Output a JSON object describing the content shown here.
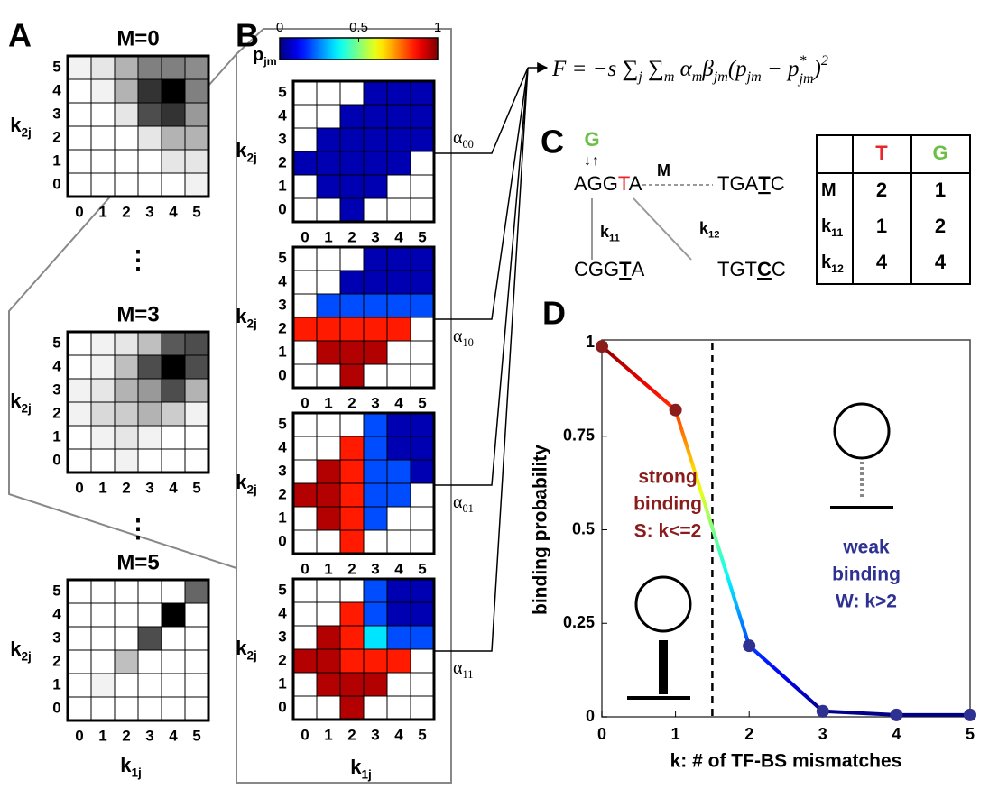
{
  "panel_a": {
    "label": "A",
    "ellipsis": "⋮",
    "ticks": [
      0,
      1,
      2,
      3,
      4,
      5
    ],
    "y_label": {
      "base": "k",
      "sub": "2j"
    },
    "x_label": {
      "base": "k",
      "sub": "1j"
    },
    "grids": [
      {
        "title": "M=0",
        "values": [
          [
            0.05,
            0.1,
            0.3,
            0.5,
            0.5,
            0.45
          ],
          [
            0,
            0.05,
            0.3,
            0.8,
            1,
            0.5
          ],
          [
            0,
            0,
            0.1,
            0.7,
            0.8,
            0.4
          ],
          [
            0,
            0,
            0,
            0.1,
            0.3,
            0.3
          ],
          [
            0,
            0,
            0,
            0,
            0.1,
            0.1
          ],
          [
            0,
            0,
            0,
            0,
            0,
            0.05
          ]
        ]
      },
      {
        "title": "M=3",
        "values": [
          [
            0,
            0.05,
            0.1,
            0.25,
            0.65,
            0.7
          ],
          [
            0,
            0.05,
            0.25,
            0.7,
            1,
            0.7
          ],
          [
            0.05,
            0.1,
            0.3,
            0.4,
            0.7,
            0.3
          ],
          [
            0.05,
            0.15,
            0.2,
            0.3,
            0.2,
            0.05
          ],
          [
            0,
            0.05,
            0.1,
            0.05,
            0,
            0
          ],
          [
            0,
            0,
            0.05,
            0,
            0,
            0
          ]
        ]
      },
      {
        "title": "M=5",
        "values": [
          [
            0,
            0,
            0,
            0,
            0,
            0.6
          ],
          [
            0,
            0,
            0,
            0,
            1,
            0
          ],
          [
            0,
            0,
            0,
            0.7,
            0,
            0
          ],
          [
            0,
            0,
            0.25,
            0,
            0,
            0
          ],
          [
            0,
            0.05,
            0,
            0,
            0,
            0
          ],
          [
            0,
            0,
            0,
            0,
            0,
            0
          ]
        ]
      }
    ]
  },
  "panel_b": {
    "label": "B",
    "ticks": [
      0,
      1,
      2,
      3,
      4,
      5
    ],
    "y_label": {
      "base": "k",
      "sub": "2j"
    },
    "x_label": {
      "base": "k",
      "sub": "1j"
    },
    "colorbar": {
      "label": {
        "base": "p",
        "sub": "jm"
      },
      "lim": [
        0,
        1
      ],
      "ticks": [
        0,
        0.5,
        1
      ]
    },
    "grids": [
      {
        "weight": {
          "base": "α",
          "sub": "00"
        },
        "values": [
          [
            null,
            null,
            null,
            0.05,
            0.05,
            0.05
          ],
          [
            null,
            null,
            0.05,
            0.05,
            0.05,
            0.05
          ],
          [
            null,
            0.05,
            0.05,
            0.05,
            0.05,
            0.05
          ],
          [
            0.05,
            0.05,
            0.05,
            0.05,
            0.05,
            null
          ],
          [
            null,
            0.05,
            0.05,
            0.05,
            null,
            null
          ],
          [
            null,
            null,
            0.05,
            null,
            null,
            null
          ]
        ]
      },
      {
        "weight": {
          "base": "α",
          "sub": "10"
        },
        "values": [
          [
            null,
            null,
            null,
            0.05,
            0.05,
            0.05
          ],
          [
            null,
            null,
            0.05,
            0.05,
            0.05,
            0.05
          ],
          [
            null,
            0.2,
            0.2,
            0.2,
            0.2,
            0.2
          ],
          [
            0.85,
            0.85,
            0.85,
            0.85,
            0.85,
            null
          ],
          [
            null,
            0.95,
            0.95,
            0.95,
            null,
            null
          ],
          [
            null,
            null,
            0.95,
            null,
            null,
            null
          ]
        ]
      },
      {
        "weight": {
          "base": "α",
          "sub": "01"
        },
        "values": [
          [
            null,
            null,
            null,
            0.2,
            0.05,
            0.05
          ],
          [
            null,
            null,
            0.85,
            0.2,
            0.05,
            0.05
          ],
          [
            null,
            0.95,
            0.85,
            0.2,
            0.2,
            0.05
          ],
          [
            0.95,
            0.95,
            0.85,
            0.2,
            0.2,
            null
          ],
          [
            null,
            0.95,
            0.85,
            0.2,
            null,
            null
          ],
          [
            null,
            null,
            0.85,
            null,
            null,
            null
          ]
        ]
      },
      {
        "weight": {
          "base": "α",
          "sub": "11"
        },
        "values": [
          [
            null,
            null,
            null,
            0.2,
            0.05,
            0.05
          ],
          [
            null,
            null,
            0.85,
            0.2,
            0.05,
            0.05
          ],
          [
            null,
            0.95,
            0.85,
            0.35,
            0.2,
            0.2
          ],
          [
            0.95,
            0.95,
            0.85,
            0.85,
            0.85,
            null
          ],
          [
            null,
            0.95,
            0.95,
            0.95,
            null,
            null
          ],
          [
            null,
            null,
            0.95,
            null,
            null,
            null
          ]
        ]
      }
    ]
  },
  "formula": [
    {
      "t": "F = −s "
    },
    {
      "t": "∑",
      "sub": "j"
    },
    {
      "t": " ∑",
      "sub": "m"
    },
    {
      "t": " α",
      "sub": "m"
    },
    {
      "t": "β",
      "sub": "jm"
    },
    {
      "t": "(p",
      "sub": "jm"
    },
    {
      "t": " − p",
      "sub": "jm",
      "sup": "*"
    },
    {
      "t": ")",
      "sup": "2"
    }
  ],
  "panel_c": {
    "label": "C",
    "mutation": "G",
    "sequences": [
      {
        "pre": "AGG",
        "hi": "T",
        "post": "A"
      },
      {
        "pre": "TGA",
        "hi": "T",
        "post": "C"
      },
      {
        "pre": "CGG",
        "hi": "T",
        "post": "A"
      },
      {
        "pre": "TGT",
        "hi": "C",
        "post": "C"
      }
    ],
    "edges": [
      {
        "base": "M"
      },
      {
        "base": "k",
        "sub": "11"
      },
      {
        "base": "k",
        "sub": "12"
      }
    ],
    "table": {
      "header": [
        "T",
        "G"
      ],
      "rows": [
        {
          "label": {
            "base": "M"
          },
          "values": [
            2,
            1
          ]
        },
        {
          "label": {
            "base": "k",
            "sub": "11"
          },
          "values": [
            1,
            2
          ]
        },
        {
          "label": {
            "base": "k",
            "sub": "12"
          },
          "values": [
            4,
            4
          ]
        }
      ]
    }
  },
  "chart_data": {
    "type": "line",
    "label": "D",
    "x_label": "k: # of TF-BS mismatches",
    "y_label": "binding probability",
    "x": [
      0,
      1,
      2,
      3,
      4,
      5
    ],
    "values": [
      0.99,
      0.82,
      0.19,
      0.015,
      0.005,
      0.005
    ],
    "marker_colors": [
      "#8b1c1c",
      "#8b1c1c",
      "#2e3192",
      "#2e3192",
      "#2e3192",
      "#2e3192"
    ],
    "xlim": [
      0,
      5
    ],
    "ylim": [
      0,
      1
    ],
    "xticks": [
      0,
      1,
      2,
      3,
      4,
      5
    ],
    "yticks": [
      0,
      0.25,
      0.5,
      0.75,
      1
    ],
    "threshold": 1.5,
    "annotations": [
      {
        "lines": [
          "strong",
          "binding",
          "S: k<=2"
        ],
        "color": "#8b1c1c"
      },
      {
        "lines": [
          "weak",
          "binding",
          "W: k>2"
        ],
        "color": "#2e3192"
      }
    ]
  }
}
